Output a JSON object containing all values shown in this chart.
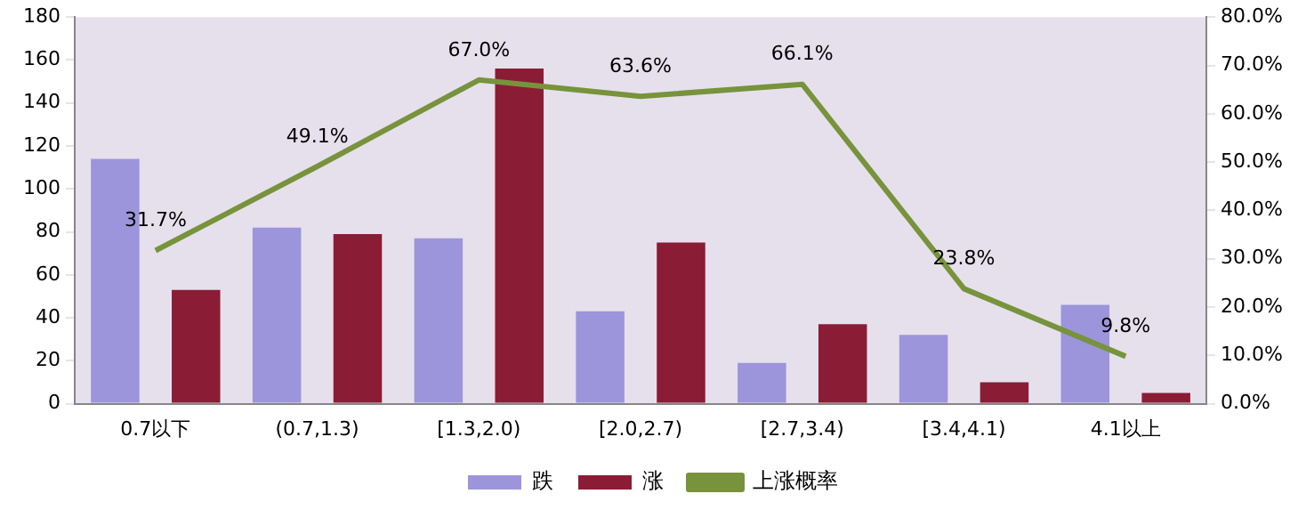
{
  "chart_data": {
    "type": "bar",
    "categories": [
      "0.7以下",
      "(0.7,1.3)",
      "[1.3,2.0)",
      "[2.0,2.7)",
      "[2.7,3.4)",
      "[3.4,4.1)",
      "4.1以上"
    ],
    "series": [
      {
        "name": "跌",
        "color": "#9c95db",
        "values": [
          114,
          82,
          77,
          43,
          19,
          32,
          46
        ]
      },
      {
        "name": "涨",
        "color": "#8b1c35",
        "values": [
          53,
          79,
          156,
          75,
          37,
          10,
          5
        ]
      },
      {
        "name": "上涨概率",
        "type": "line",
        "axis": "y2",
        "color": "#77933c",
        "values": [
          31.7,
          49.1,
          67.0,
          63.6,
          66.1,
          23.8,
          9.8
        ],
        "value_labels": [
          "31.7%",
          "49.1%",
          "67.0%",
          "63.6%",
          "66.1%",
          "23.8%",
          "9.8%"
        ]
      }
    ],
    "ylim": [
      0,
      180
    ],
    "yticks": [
      0,
      20,
      40,
      60,
      80,
      100,
      120,
      140,
      160,
      180
    ],
    "y2lim": [
      0,
      80
    ],
    "y2ticks": [
      {
        "value": 0,
        "label": "0.0%"
      },
      {
        "value": 10,
        "label": "10.0%"
      },
      {
        "value": 20,
        "label": "20.0%"
      },
      {
        "value": 30,
        "label": "30.0%"
      },
      {
        "value": 40,
        "label": "40.0%"
      },
      {
        "value": 50,
        "label": "50.0%"
      },
      {
        "value": 60,
        "label": "60.0%"
      },
      {
        "value": 70,
        "label": "70.0%"
      },
      {
        "value": 80,
        "label": "80.0%"
      }
    ],
    "grid": false,
    "legend": "bottom",
    "marker": "none"
  }
}
